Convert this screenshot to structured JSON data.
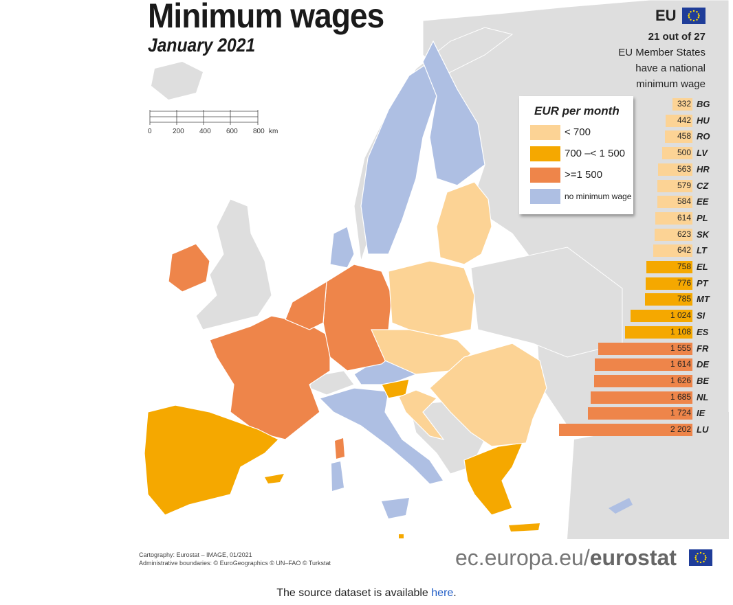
{
  "map": {
    "title": "Minimum wages",
    "subtitle": "January 2021",
    "eu_label": "EU",
    "eu_note": {
      "highlight": "21 out of 27",
      "line1": "EU Member States",
      "line2": "have a national",
      "line3": "minimum wage"
    },
    "legend": {
      "title": "EUR per month",
      "items": [
        {
          "label": "< 700",
          "color": "#fcd395"
        },
        {
          "label": "700 –< 1 500",
          "color": "#f5a800"
        },
        {
          "label": ">=1 500",
          "color": "#ee854a"
        },
        {
          "label": "no minimum wage",
          "color": "#aebfe3"
        }
      ]
    },
    "scale": {
      "labels": [
        "0",
        "200",
        "400",
        "600",
        "800"
      ],
      "unit": "km"
    },
    "colors": {
      "sea": "#ffffff",
      "land_other": "#dedede",
      "low": "#fcd395",
      "mid": "#f5a800",
      "high": "#ee854a",
      "none": "#aebfe3"
    },
    "credits": {
      "line1": "Cartography: Eurostat – IMAGE, 01/2021",
      "line2": "Administrative boundaries: © EuroGeographics © UN–FAO © Turkstat"
    },
    "brand": {
      "prefix": "ec.europa.eu/",
      "name": "eurostat"
    }
  },
  "chart_data": {
    "type": "bar",
    "orientation": "horizontal",
    "unit": "EUR per month",
    "categories": [
      "BG",
      "HU",
      "RO",
      "LV",
      "HR",
      "CZ",
      "EE",
      "PL",
      "SK",
      "LT",
      "EL",
      "PT",
      "MT",
      "SI",
      "ES",
      "FR",
      "DE",
      "BE",
      "NL",
      "IE",
      "LU"
    ],
    "values": [
      332,
      442,
      458,
      500,
      563,
      579,
      584,
      614,
      623,
      642,
      758,
      776,
      785,
      1024,
      1108,
      1555,
      1614,
      1626,
      1685,
      1724,
      2202
    ],
    "value_labels": [
      "332",
      "442",
      "458",
      "500",
      "563",
      "579",
      "584",
      "614",
      "623",
      "642",
      "758",
      "776",
      "785",
      "1 024",
      "1 108",
      "1 555",
      "1 614",
      "1 626",
      "1 685",
      "1 724",
      "2 202"
    ],
    "classes": [
      "low",
      "low",
      "low",
      "low",
      "low",
      "low",
      "low",
      "low",
      "low",
      "low",
      "mid",
      "mid",
      "mid",
      "mid",
      "mid",
      "high",
      "high",
      "high",
      "high",
      "high",
      "high"
    ]
  },
  "footer": {
    "text": "The source dataset is available ",
    "link": "here",
    "end": "."
  }
}
